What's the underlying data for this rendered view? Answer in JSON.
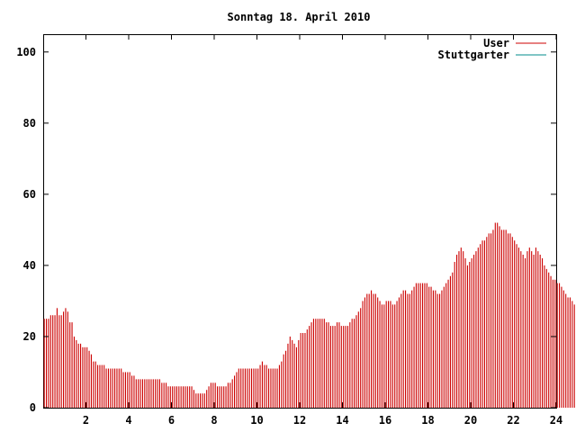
{
  "chart_data": {
    "type": "bar",
    "title": "Sonntag 18. April 2010",
    "xlabel": "",
    "ylabel": "",
    "xlim": [
      0,
      24
    ],
    "ylim": [
      0,
      105
    ],
    "xticks": [
      "2",
      "4",
      "6",
      "8",
      "10",
      "12",
      "14",
      "16",
      "18",
      "20",
      "22",
      "24"
    ],
    "yticks": [
      "0",
      "20",
      "40",
      "60",
      "80",
      "100"
    ],
    "grid": false,
    "legend_position": "top-right",
    "bar_interval_hours": 0.1,
    "series": [
      {
        "name": "User",
        "color": "#cc0000",
        "values": [
          25,
          25,
          25,
          26,
          26,
          26,
          28,
          26,
          26,
          27,
          28,
          27,
          24,
          24,
          20,
          19,
          18,
          18,
          17,
          17,
          17,
          16,
          15,
          13,
          13,
          12,
          12,
          12,
          12,
          11,
          11,
          11,
          11,
          11,
          11,
          11,
          11,
          10,
          10,
          10,
          10,
          9,
          9,
          8,
          8,
          8,
          8,
          8,
          8,
          8,
          8,
          8,
          8,
          8,
          8,
          7,
          7,
          7,
          6,
          6,
          6,
          6,
          6,
          6,
          6,
          6,
          6,
          6,
          6,
          6,
          5,
          4,
          4,
          4,
          4,
          4,
          5,
          6,
          7,
          7,
          7,
          6,
          6,
          6,
          6,
          6,
          7,
          7,
          8,
          9,
          10,
          11,
          11,
          11,
          11,
          11,
          11,
          11,
          11,
          11,
          11,
          12,
          13,
          12,
          12,
          11,
          11,
          11,
          11,
          11,
          12,
          13,
          15,
          16,
          18,
          20,
          19,
          18,
          17,
          19,
          21,
          21,
          21,
          22,
          23,
          24,
          25,
          25,
          25,
          25,
          25,
          25,
          24,
          24,
          23,
          23,
          23,
          24,
          24,
          23,
          23,
          23,
          23,
          24,
          25,
          25,
          26,
          27,
          28,
          30,
          31,
          32,
          32,
          33,
          32,
          32,
          31,
          30,
          29,
          29,
          30,
          30,
          30,
          29,
          29,
          30,
          31,
          32,
          33,
          33,
          32,
          32,
          33,
          34,
          35,
          35,
          35,
          35,
          35,
          35,
          34,
          34,
          33,
          33,
          32,
          32,
          33,
          34,
          35,
          36,
          37,
          38,
          41,
          43,
          44,
          45,
          44,
          42,
          40,
          41,
          42,
          43,
          44,
          45,
          46,
          47,
          47,
          48,
          49,
          49,
          50,
          52,
          52,
          51,
          50,
          50,
          50,
          49,
          49,
          48,
          47,
          46,
          45,
          44,
          43,
          42,
          44,
          45,
          44,
          43,
          45,
          44,
          43,
          42,
          40,
          39,
          38,
          37,
          36,
          36,
          35,
          35,
          34,
          33,
          32,
          31,
          31,
          30,
          29,
          29
        ]
      },
      {
        "name": "Stuttgarter",
        "color": "#008b8b",
        "values": []
      }
    ]
  }
}
